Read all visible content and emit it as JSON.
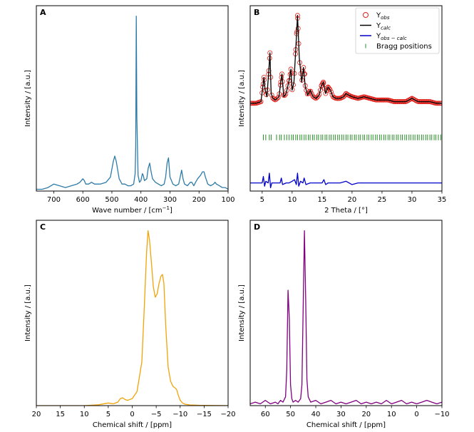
{
  "chart_data": [
    {
      "id": "A",
      "type": "line",
      "panel_label": "A",
      "xlabel": "Wave number / [cm",
      "xlabel_sup": "−1",
      "xlabel_tail": "]",
      "ylabel": "Intensity / [a.u.]",
      "xlim": [
        760,
        100
      ],
      "ylim": [
        0,
        1.06
      ],
      "xticks": [
        700,
        600,
        500,
        400,
        300,
        200,
        100
      ],
      "yticks": [],
      "series": [
        {
          "color": "#2e7ca8",
          "x": [
            760,
            740,
            720,
            700,
            680,
            660,
            640,
            620,
            610,
            600,
            595,
            590,
            580,
            570,
            560,
            540,
            520,
            505,
            495,
            490,
            485,
            475,
            465,
            455,
            445,
            435,
            425,
            420,
            418,
            416,
            414,
            410,
            405,
            400,
            395,
            392,
            388,
            380,
            375,
            370,
            365,
            360,
            350,
            340,
            330,
            320,
            315,
            310,
            305,
            300,
            290,
            280,
            270,
            265,
            260,
            255,
            250,
            240,
            230,
            225,
            218,
            212,
            205,
            195,
            188,
            183,
            178,
            170,
            160,
            150,
            145,
            140,
            130,
            120,
            110,
            100
          ],
          "y": [
            0.01,
            0.01,
            0.02,
            0.04,
            0.03,
            0.02,
            0.03,
            0.04,
            0.05,
            0.07,
            0.06,
            0.04,
            0.04,
            0.05,
            0.04,
            0.04,
            0.05,
            0.08,
            0.17,
            0.2,
            0.17,
            0.07,
            0.04,
            0.04,
            0.03,
            0.03,
            0.04,
            0.1,
            0.25,
            1.0,
            0.42,
            0.09,
            0.05,
            0.06,
            0.1,
            0.09,
            0.06,
            0.07,
            0.13,
            0.16,
            0.11,
            0.07,
            0.05,
            0.04,
            0.03,
            0.04,
            0.08,
            0.16,
            0.19,
            0.08,
            0.04,
            0.03,
            0.04,
            0.08,
            0.12,
            0.07,
            0.04,
            0.03,
            0.05,
            0.05,
            0.03,
            0.05,
            0.07,
            0.09,
            0.11,
            0.11,
            0.08,
            0.04,
            0.03,
            0.04,
            0.05,
            0.04,
            0.03,
            0.02,
            0.02,
            0.01
          ]
        }
      ]
    },
    {
      "id": "B",
      "type": "scatter",
      "panel_label": "B",
      "xlabel": "2 Theta / [°]",
      "ylabel": "Intensity / [a.u.]",
      "xlim": [
        3,
        35
      ],
      "ylim": [
        -0.12,
        1.02
      ],
      "xticks": [
        5,
        10,
        15,
        20,
        25,
        30,
        35
      ],
      "yticks": [],
      "legend_position": "top-right",
      "legend": [
        {
          "label": "Y",
          "sub": "obs",
          "marker": "circle",
          "color": "#e0201b"
        },
        {
          "label": "Y",
          "sub": "calc",
          "marker": "line",
          "color": "#000000"
        },
        {
          "label": "Y",
          "sub": "obs − calc",
          "marker": "line",
          "color": "#0000cc"
        },
        {
          "label": "Bragg positions",
          "marker": "tick",
          "color": "#2a8c2a"
        }
      ],
      "series": [
        {
          "name": "Y_calc",
          "color": "#000000",
          "x": [
            3,
            4,
            4.8,
            5.1,
            5.3,
            5.5,
            5.8,
            6.1,
            6.3,
            6.5,
            6.8,
            7.2,
            7.8,
            8.1,
            8.3,
            8.6,
            9.0,
            9.5,
            9.8,
            10.0,
            10.3,
            10.6,
            10.9,
            11.2,
            11.6,
            11.9,
            12.2,
            12.6,
            13.0,
            13.5,
            14.0,
            14.5,
            14.9,
            15.2,
            15.6,
            16.0,
            16.4,
            16.8,
            17.3,
            18.0,
            18.6,
            19.0,
            19.4,
            20.0,
            21.0,
            22.0,
            23.0,
            24.0,
            25.0,
            26.0,
            27.0,
            28.0,
            29.0,
            30.0,
            30.5,
            31.0,
            32.0,
            33.0,
            34.0,
            35.0
          ],
          "y": [
            0.42,
            0.42,
            0.43,
            0.52,
            0.58,
            0.5,
            0.46,
            0.62,
            0.73,
            0.48,
            0.45,
            0.44,
            0.46,
            0.55,
            0.6,
            0.46,
            0.48,
            0.56,
            0.63,
            0.5,
            0.55,
            0.75,
            0.96,
            0.7,
            0.55,
            0.64,
            0.52,
            0.47,
            0.5,
            0.46,
            0.45,
            0.47,
            0.53,
            0.55,
            0.48,
            0.52,
            0.5,
            0.46,
            0.45,
            0.45,
            0.46,
            0.48,
            0.47,
            0.46,
            0.45,
            0.46,
            0.45,
            0.44,
            0.44,
            0.44,
            0.43,
            0.43,
            0.43,
            0.45,
            0.44,
            0.43,
            0.43,
            0.43,
            0.42,
            0.42
          ]
        },
        {
          "name": "Y_obs-calc",
          "color": "#0000cc",
          "x": [
            3,
            4,
            5,
            5.2,
            5.4,
            5.6,
            6.0,
            6.2,
            6.4,
            6.6,
            7.0,
            7.5,
            8.0,
            8.2,
            8.4,
            9.0,
            9.5,
            10.0,
            10.4,
            10.7,
            10.9,
            11.1,
            11.4,
            11.8,
            12.0,
            12.3,
            13.0,
            14.0,
            15.0,
            15.3,
            15.6,
            16.0,
            17.0,
            18.0,
            19.0,
            20.0,
            21.0,
            22.0,
            23.0,
            24.0,
            25.0,
            26.0,
            27.0,
            28.0,
            29.0,
            30.0,
            31.0,
            32.0,
            33.0,
            34.0,
            35.0
          ],
          "y": [
            -0.07,
            -0.07,
            -0.07,
            -0.03,
            -0.09,
            -0.06,
            -0.07,
            -0.01,
            -0.1,
            -0.07,
            -0.07,
            -0.07,
            -0.07,
            -0.04,
            -0.08,
            -0.07,
            -0.07,
            -0.06,
            -0.05,
            -0.08,
            -0.01,
            -0.09,
            -0.06,
            -0.07,
            -0.04,
            -0.08,
            -0.07,
            -0.07,
            -0.07,
            -0.05,
            -0.08,
            -0.07,
            -0.07,
            -0.07,
            -0.06,
            -0.08,
            -0.07,
            -0.07,
            -0.07,
            -0.07,
            -0.07,
            -0.07,
            -0.07,
            -0.07,
            -0.07,
            -0.07,
            -0.07,
            -0.07,
            -0.07,
            -0.07,
            -0.07
          ]
        }
      ],
      "obs_points": {
        "name": "Y_obs",
        "color": "#e0201b",
        "x": [
          5.1,
          5.3,
          6.1,
          6.3,
          8.1,
          8.3,
          9.5,
          9.8,
          10.6,
          10.8,
          10.9,
          11.0,
          11.9,
          12.1,
          14.9,
          15.2,
          16.0,
          19.0,
          20.0,
          25.0,
          30.0
        ],
        "y": [
          0.52,
          0.58,
          0.62,
          0.73,
          0.55,
          0.6,
          0.56,
          0.63,
          0.75,
          0.86,
          0.96,
          0.88,
          0.64,
          0.6,
          0.53,
          0.55,
          0.52,
          0.48,
          0.46,
          0.44,
          0.45
        ]
      },
      "bragg_positions": {
        "name": "Bragg positions",
        "color": "#2a8c2a",
        "y": 0.21,
        "x": [
          5.2,
          5.6,
          6.2,
          6.5,
          7.4,
          7.9,
          8.2,
          8.7,
          9.1,
          9.5,
          9.9,
          10.2,
          10.6,
          10.9,
          11.3,
          11.6,
          12.0,
          12.3,
          12.7,
          13.0,
          13.4,
          13.7,
          14.1,
          14.4,
          14.8,
          15.1,
          15.5,
          15.8,
          16.2,
          16.5,
          16.9,
          17.2,
          17.6,
          17.9,
          18.3,
          18.6,
          19.0,
          19.3,
          19.7,
          20.0,
          20.4,
          20.7,
          21.1,
          21.4,
          21.8,
          22.1,
          22.5,
          22.8,
          23.2,
          23.5,
          23.9,
          24.2,
          24.6,
          24.9,
          25.3,
          25.6,
          26.0,
          26.3,
          26.7,
          27.0,
          27.4,
          27.7,
          28.1,
          28.4,
          28.8,
          29.1,
          29.5,
          29.8,
          30.2,
          30.5,
          30.9,
          31.2,
          31.6,
          31.9,
          32.3,
          32.6,
          33.0,
          33.3,
          33.7,
          34.0,
          34.4,
          34.8
        ]
      }
    },
    {
      "id": "C",
      "type": "line",
      "panel_label": "C",
      "xlabel": "Chemical shift / [ppm]",
      "ylabel": "Intensity / [a.u.]",
      "xlim": [
        20,
        -20
      ],
      "ylim": [
        0,
        1.06
      ],
      "xticks": [
        20,
        15,
        10,
        5,
        0,
        -5,
        -10,
        -15,
        -20
      ],
      "yticks": [],
      "series": [
        {
          "color": "#f0a30a",
          "x": [
            20,
            15,
            10,
            7,
            5,
            4,
            3,
            2.5,
            2,
            1.5,
            1,
            0,
            -1,
            -2,
            -2.5,
            -3,
            -3.3,
            -3.6,
            -4,
            -4.4,
            -4.8,
            -5.2,
            -5.6,
            -6,
            -6.3,
            -6.6,
            -7,
            -7.5,
            -8,
            -8.5,
            -9,
            -9.3,
            -9.6,
            -10,
            -10.5,
            -11,
            -12,
            -14,
            -17,
            -20
          ],
          "y": [
            0.0,
            0.0,
            0.0,
            0.005,
            0.015,
            0.01,
            0.02,
            0.04,
            0.045,
            0.035,
            0.03,
            0.04,
            0.08,
            0.25,
            0.55,
            0.88,
            1.0,
            0.95,
            0.82,
            0.68,
            0.62,
            0.64,
            0.7,
            0.74,
            0.75,
            0.7,
            0.45,
            0.22,
            0.14,
            0.11,
            0.1,
            0.09,
            0.06,
            0.03,
            0.015,
            0.008,
            0.004,
            0.002,
            0.001,
            0.0
          ]
        }
      ]
    },
    {
      "id": "D",
      "type": "line",
      "panel_label": "D",
      "xlabel": "Chemical shift / [ppm]",
      "ylabel": "Intensity / [a.u.]",
      "xlim": [
        66,
        -10
      ],
      "ylim": [
        0,
        1.06
      ],
      "xticks": [
        60,
        50,
        40,
        30,
        20,
        10,
        0,
        -10
      ],
      "yticks": [],
      "series": [
        {
          "color": "#800080",
          "x": [
            66,
            64,
            62,
            60,
            58,
            56,
            55,
            54,
            53,
            52,
            51.5,
            51,
            50.5,
            50,
            49.5,
            49,
            48,
            47,
            46,
            45.5,
            45,
            44.5,
            44,
            43.5,
            43,
            42,
            40,
            38,
            36,
            34,
            32,
            30,
            28,
            26,
            24,
            22,
            20,
            18,
            16,
            14,
            12,
            10,
            8,
            6,
            4,
            2,
            0,
            -2,
            -4,
            -6,
            -8,
            -10
          ],
          "y": [
            0.01,
            0.02,
            0.01,
            0.03,
            0.01,
            0.02,
            0.01,
            0.03,
            0.02,
            0.05,
            0.2,
            0.66,
            0.5,
            0.12,
            0.04,
            0.02,
            0.03,
            0.02,
            0.04,
            0.12,
            0.55,
            1.0,
            0.6,
            0.15,
            0.05,
            0.02,
            0.03,
            0.01,
            0.02,
            0.03,
            0.01,
            0.02,
            0.01,
            0.02,
            0.03,
            0.01,
            0.02,
            0.01,
            0.02,
            0.01,
            0.03,
            0.01,
            0.02,
            0.03,
            0.01,
            0.02,
            0.01,
            0.02,
            0.03,
            0.02,
            0.01,
            0.02
          ]
        }
      ]
    }
  ]
}
